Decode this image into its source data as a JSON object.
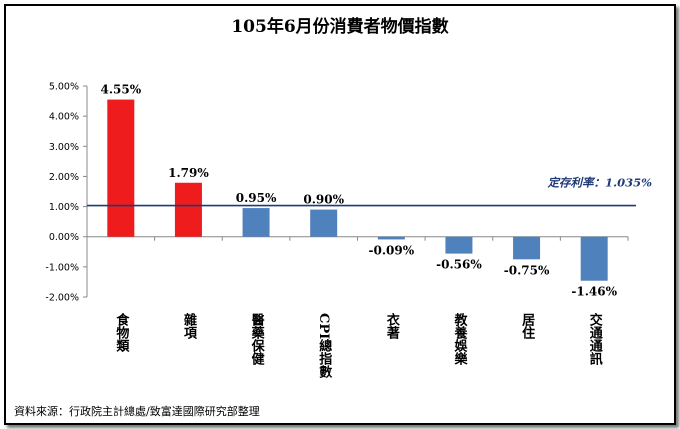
{
  "chart_data": {
    "type": "bar",
    "title": "105年6月份消費者物價指數",
    "categories": [
      "食物類",
      "雜項",
      "醫藥保健",
      "CPI總指數",
      "衣著",
      "教養娛樂",
      "居住",
      "交通通訊"
    ],
    "values": [
      4.55,
      1.79,
      0.95,
      0.9,
      -0.09,
      -0.56,
      -0.75,
      -1.46
    ],
    "value_labels": [
      "4.55%",
      "1.79%",
      "0.95%",
      "0.90%",
      "-0.09%",
      "-0.56%",
      "-0.75%",
      "-1.46%"
    ],
    "bar_colors": [
      "#ee1c1c",
      "#ee1c1c",
      "#4f81bd",
      "#4f81bd",
      "#4f81bd",
      "#4f81bd",
      "#4f81bd",
      "#4f81bd"
    ],
    "ylim": [
      -2.0,
      5.0
    ],
    "yticks": [
      5.0,
      4.0,
      3.0,
      2.0,
      1.0,
      0.0,
      -1.0,
      -2.0
    ],
    "ytick_labels": [
      "5.00%",
      "4.00%",
      "3.00%",
      "2.00%",
      "1.00%",
      "0.00%",
      "-1.00%",
      "-2.00%"
    ],
    "reference_line": {
      "value": 1.035,
      "label": "定存利率：1.035%",
      "color": "#1f3a78"
    },
    "grid": false,
    "xlabel": "",
    "ylabel": ""
  },
  "source_note": "資料來源：行政院主計總處/致富達國際研究部整理"
}
